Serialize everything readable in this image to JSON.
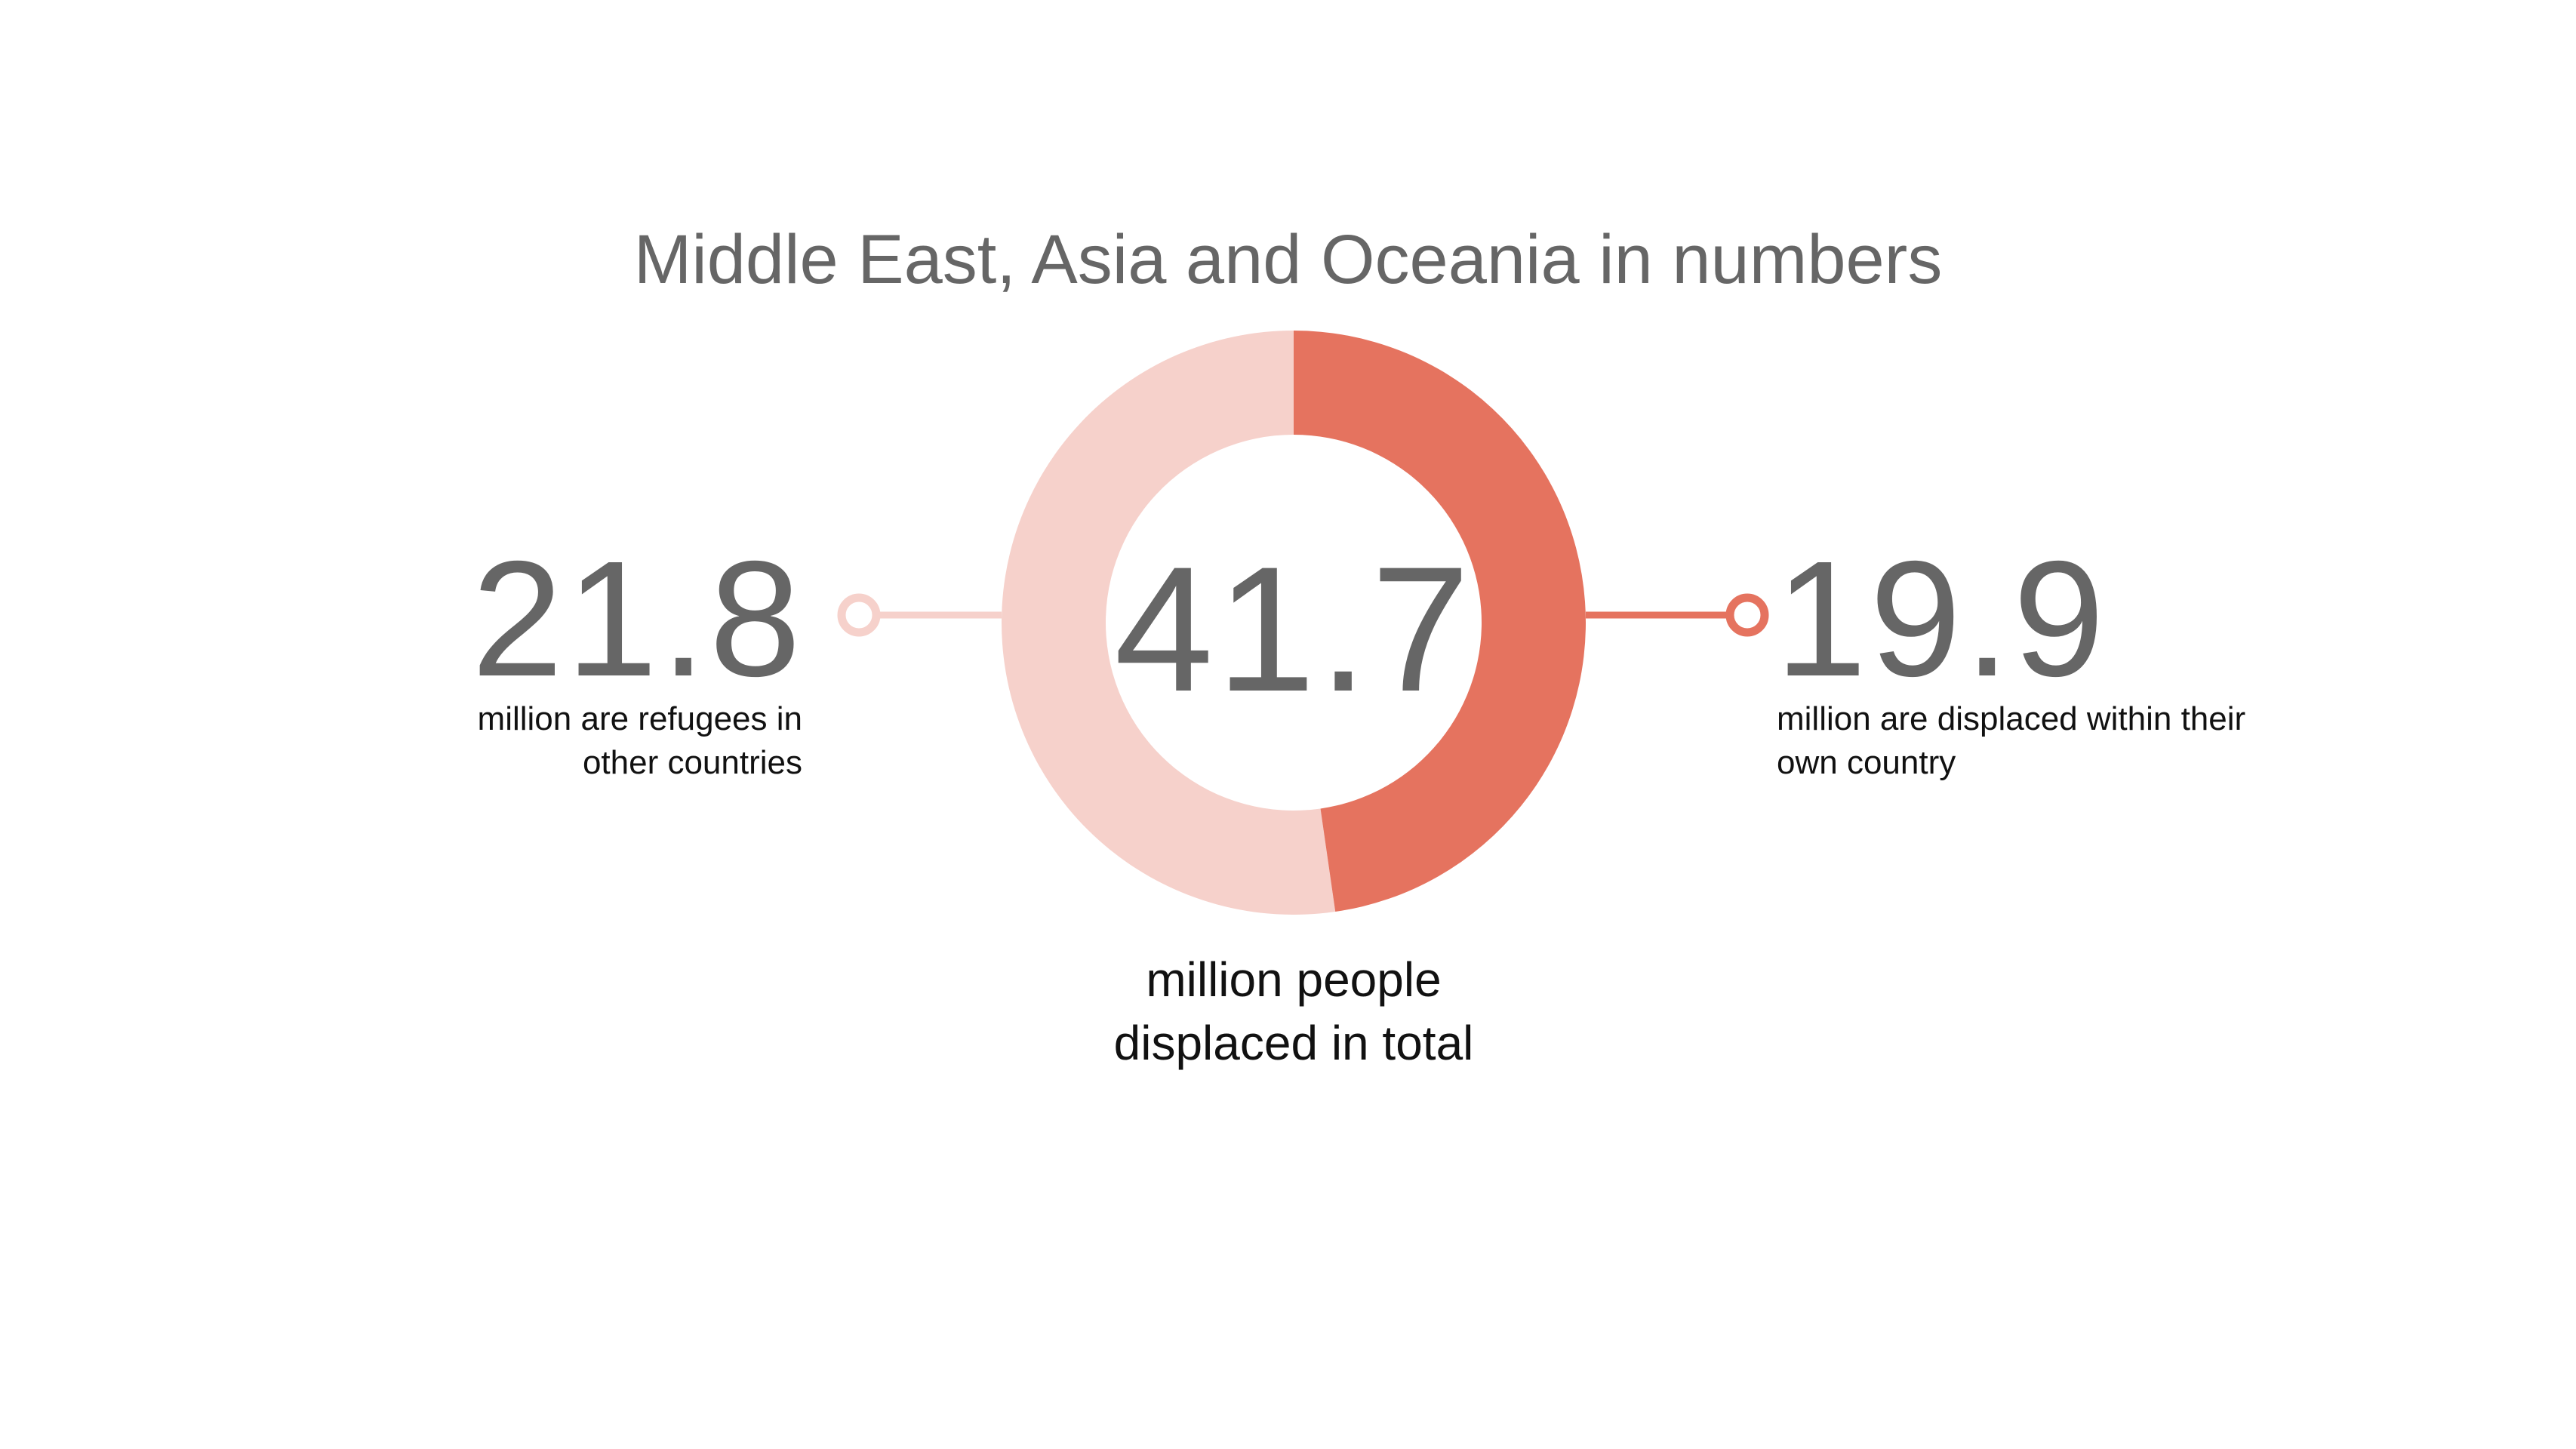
{
  "chart_data": {
    "type": "pie",
    "donut": true,
    "title": "Middle East, Asia and Oceania in numbers",
    "categories": [
      "million are refugees in other countries",
      "million are displaced within their own country"
    ],
    "values": [
      21.8,
      19.9
    ],
    "colors": [
      "#f6d1cb",
      "#e5735f"
    ],
    "total": 41.7,
    "total_label": "million people displaced in total"
  }
}
